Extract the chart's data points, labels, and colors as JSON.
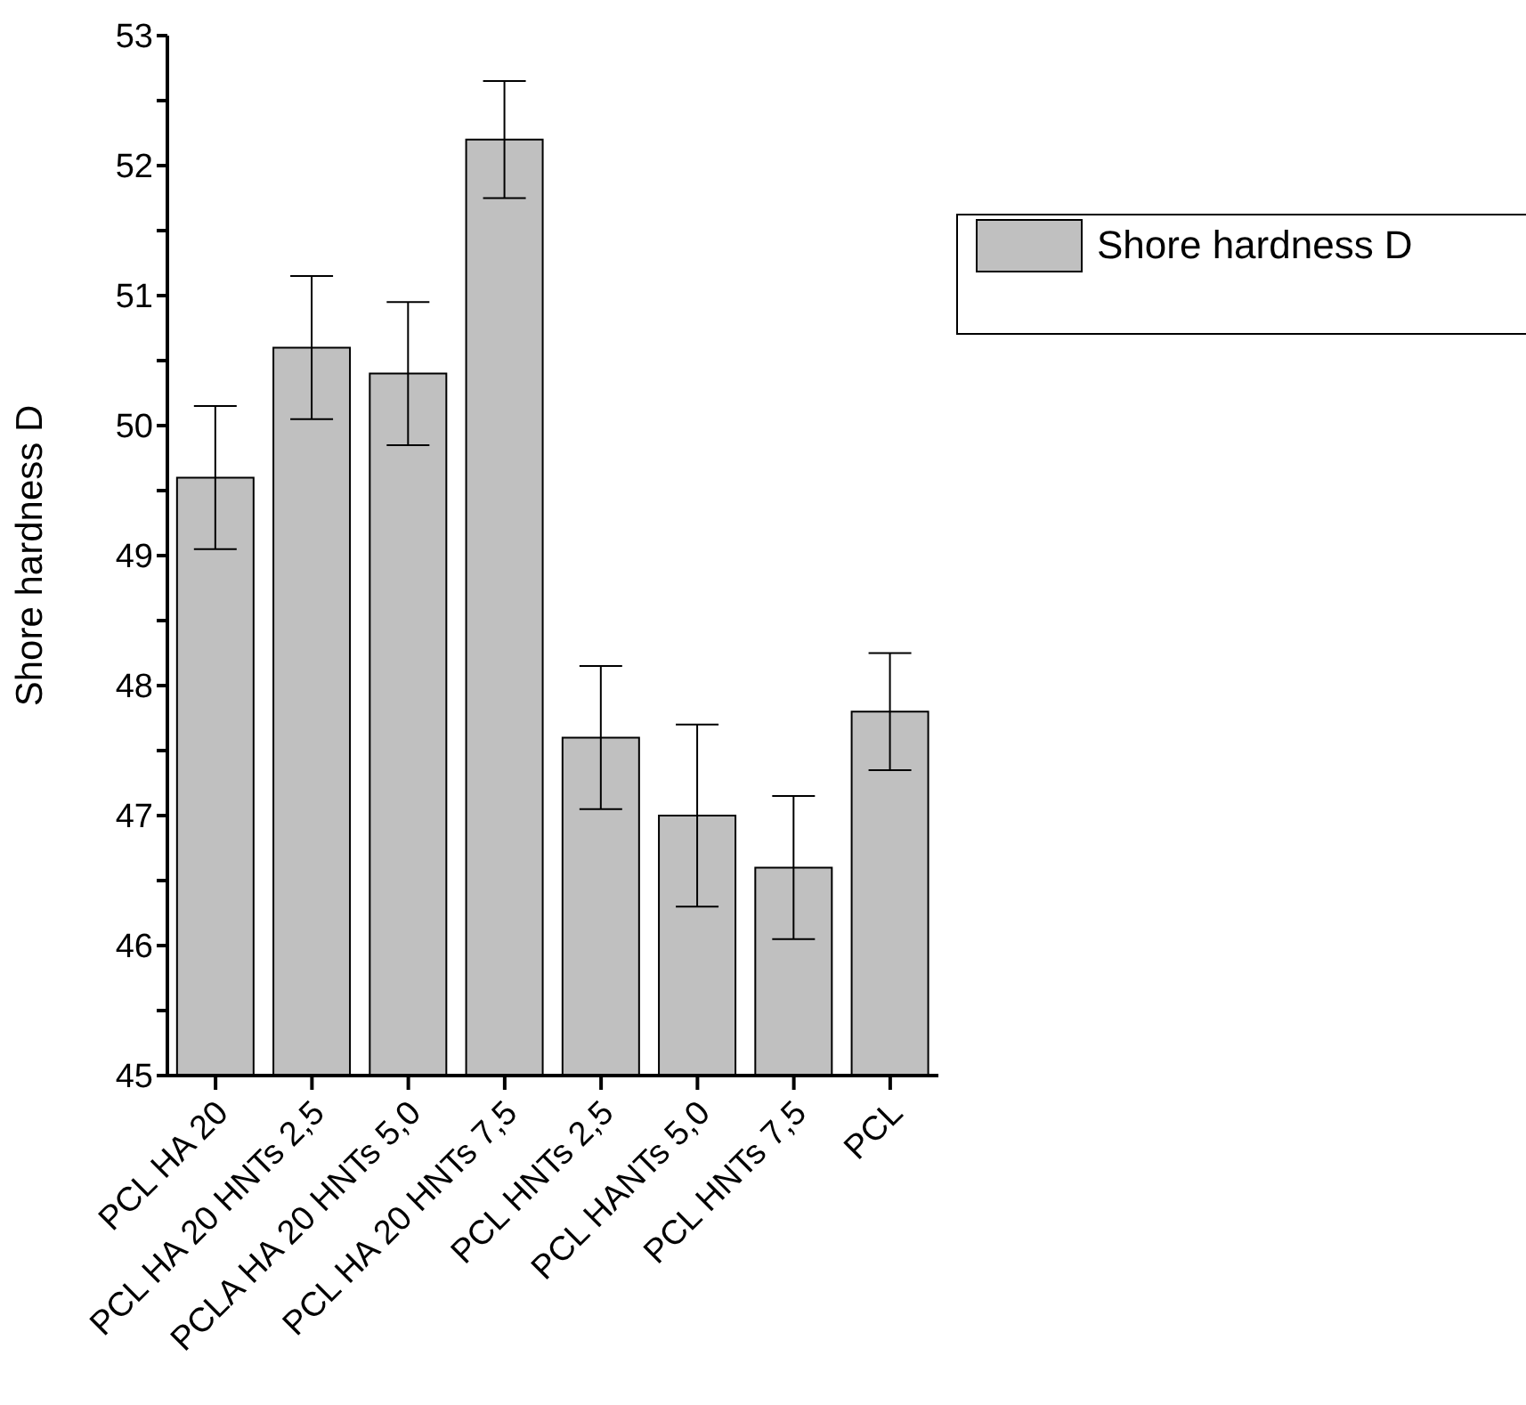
{
  "chart_data": {
    "type": "bar",
    "ylabel": "Shore hardness D",
    "categories": [
      "PCL HA 20",
      "PCL HA 20 HNTs 2,5",
      "PCLA HA 20 HNTs 5,0",
      "PCL HA 20 HNTs 7,5",
      "PCL HNTs 2,5",
      "PCL HANTs 5,0",
      "PCL HNTs 7,5",
      "PCL"
    ],
    "series": [
      {
        "name": "Shore hardness D",
        "color": "#c0c0c0",
        "values": [
          49.6,
          50.6,
          50.4,
          52.2,
          47.6,
          47.0,
          46.6,
          47.8
        ],
        "errors": [
          0.55,
          0.55,
          0.55,
          0.45,
          0.55,
          0.7,
          0.55,
          0.45
        ]
      }
    ],
    "ylim": [
      45,
      53
    ],
    "yticks": [
      45,
      {
        "value": 45.5,
        "label": null
      },
      46,
      {
        "value": 46.5,
        "label": null
      },
      47,
      {
        "value": 47.5,
        "label": null
      },
      48,
      {
        "value": 48.5,
        "label": null
      },
      49,
      {
        "value": 49.5,
        "label": null
      },
      50,
      {
        "value": 50.5,
        "label": null
      },
      51,
      {
        "value": 51.5,
        "label": null
      },
      52,
      {
        "value": 52.5,
        "label": null
      },
      53
    ],
    "legend": "top right",
    "grid": false
  }
}
